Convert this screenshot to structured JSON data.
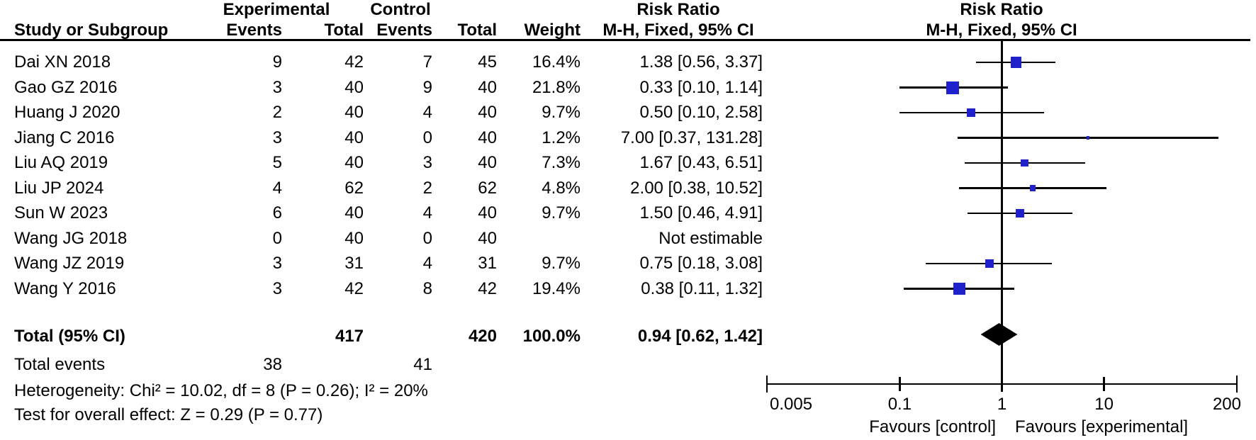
{
  "headers": {
    "experimental": "Experimental",
    "control": "Control",
    "risk_ratio": "Risk Ratio",
    "study": "Study or Subgroup",
    "events": "Events",
    "total": "Total",
    "events2": "Events",
    "total2": "Total",
    "weight": "Weight",
    "ci_method": "M-H, Fixed, 95% CI",
    "ci_method_plot": "M-H, Fixed, 95% CI"
  },
  "chart_data": {
    "type": "forest",
    "effect_measure": "Risk Ratio",
    "method": "Mantel-Haenszel Fixed effect, 95% CI",
    "x_axis": {
      "scale": "log",
      "min": 0.005,
      "max": 200,
      "null_line": 1,
      "tick_labels": [
        "0.005",
        "0.1",
        "1",
        "10",
        "200"
      ],
      "tick_values": [
        0.005,
        0.1,
        1,
        10,
        200
      ]
    },
    "favours_left": "Favours [control]",
    "favours_right": "Favours [experimental]",
    "studies": [
      {
        "name": "Dai XN 2018",
        "exp_events": "9",
        "exp_total": "42",
        "ctl_events": "7",
        "ctl_total": "45",
        "weight": "16.4%",
        "weight_value": 16.4,
        "rr": 1.38,
        "ci_low": 0.56,
        "ci_high": 3.37,
        "label": "1.38 [0.56, 3.37]",
        "estimable": true
      },
      {
        "name": "Gao GZ 2016",
        "exp_events": "3",
        "exp_total": "40",
        "ctl_events": "9",
        "ctl_total": "40",
        "weight": "21.8%",
        "weight_value": 21.8,
        "rr": 0.33,
        "ci_low": 0.1,
        "ci_high": 1.14,
        "label": "0.33 [0.10, 1.14]",
        "estimable": true
      },
      {
        "name": "Huang J 2020",
        "exp_events": "2",
        "exp_total": "40",
        "ctl_events": "4",
        "ctl_total": "40",
        "weight": "9.7%",
        "weight_value": 9.7,
        "rr": 0.5,
        "ci_low": 0.1,
        "ci_high": 2.58,
        "label": "0.50 [0.10, 2.58]",
        "estimable": true
      },
      {
        "name": "Jiang C 2016",
        "exp_events": "3",
        "exp_total": "40",
        "ctl_events": "0",
        "ctl_total": "40",
        "weight": "1.2%",
        "weight_value": 1.2,
        "rr": 7.0,
        "ci_low": 0.37,
        "ci_high": 131.28,
        "label": "7.00 [0.37, 131.28]",
        "estimable": true
      },
      {
        "name": "Liu AQ 2019",
        "exp_events": "5",
        "exp_total": "40",
        "ctl_events": "3",
        "ctl_total": "40",
        "weight": "7.3%",
        "weight_value": 7.3,
        "rr": 1.67,
        "ci_low": 0.43,
        "ci_high": 6.51,
        "label": "1.67 [0.43, 6.51]",
        "estimable": true
      },
      {
        "name": "Liu JP 2024",
        "exp_events": "4",
        "exp_total": "62",
        "ctl_events": "2",
        "ctl_total": "62",
        "weight": "4.8%",
        "weight_value": 4.8,
        "rr": 2.0,
        "ci_low": 0.38,
        "ci_high": 10.52,
        "label": "2.00 [0.38, 10.52]",
        "estimable": true
      },
      {
        "name": "Sun W 2023",
        "exp_events": "6",
        "exp_total": "40",
        "ctl_events": "4",
        "ctl_total": "40",
        "weight": "9.7%",
        "weight_value": 9.7,
        "rr": 1.5,
        "ci_low": 0.46,
        "ci_high": 4.91,
        "label": "1.50 [0.46, 4.91]",
        "estimable": true
      },
      {
        "name": "Wang JG 2018",
        "exp_events": "0",
        "exp_total": "40",
        "ctl_events": "0",
        "ctl_total": "40",
        "weight": "",
        "weight_value": 0,
        "rr": null,
        "ci_low": null,
        "ci_high": null,
        "label": "Not estimable",
        "estimable": false
      },
      {
        "name": "Wang JZ 2019",
        "exp_events": "3",
        "exp_total": "31",
        "ctl_events": "4",
        "ctl_total": "31",
        "weight": "9.7%",
        "weight_value": 9.7,
        "rr": 0.75,
        "ci_low": 0.18,
        "ci_high": 3.08,
        "label": "0.75 [0.18, 3.08]",
        "estimable": true
      },
      {
        "name": "Wang Y 2016",
        "exp_events": "3",
        "exp_total": "42",
        "ctl_events": "8",
        "ctl_total": "42",
        "weight": "19.4%",
        "weight_value": 19.4,
        "rr": 0.38,
        "ci_low": 0.11,
        "ci_high": 1.32,
        "label": "0.38 [0.11, 1.32]",
        "estimable": true
      }
    ],
    "total": {
      "name": "Total (95% CI)",
      "exp_total": "417",
      "ctl_total": "420",
      "weight": "100.0%",
      "rr": 0.94,
      "ci_low": 0.62,
      "ci_high": 1.42,
      "label": "0.94 [0.62, 1.42]"
    },
    "total_events": {
      "label": "Total events",
      "exp": "38",
      "ctl": "41"
    },
    "heterogeneity": "Heterogeneity: Chi² = 10.02, df = 8 (P = 0.26); I² = 20%",
    "overall_effect": "Test for overall effect: Z = 0.29 (P = 0.77)"
  },
  "colors": {
    "marker_blue": "#2121CC",
    "diamond_black": "#000000",
    "line_black": "#000000",
    "background": "#FFFFFF"
  }
}
